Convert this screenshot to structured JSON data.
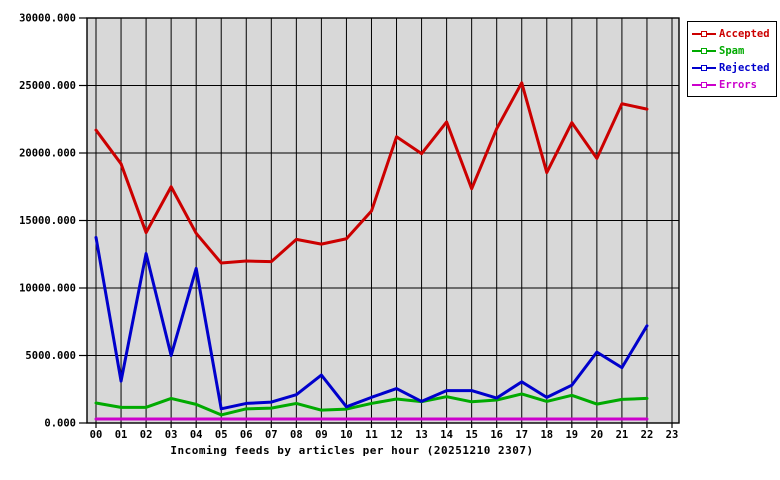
{
  "chart_data": {
    "type": "line",
    "title": "Incoming feeds by articles per hour (20251210 2307)",
    "x_tick_labels": [
      "00",
      "01",
      "02",
      "03",
      "04",
      "05",
      "06",
      "07",
      "08",
      "09",
      "10",
      "11",
      "12",
      "13",
      "14",
      "15",
      "16",
      "17",
      "18",
      "19",
      "20",
      "21",
      "22",
      "23"
    ],
    "y_tick_labels": [
      "0.000",
      "5000.000",
      "10000.000",
      "15000.000",
      "20000.000",
      "25000.000",
      "30000.000"
    ],
    "y_tick_step": 5000,
    "ylim": [
      0,
      30000
    ],
    "grid": true,
    "plot_background": "#d8d8d8",
    "grid_color": "#000000",
    "legend_position": "top-right",
    "series": [
      {
        "name": "Accepted",
        "color": "#cc0000",
        "values": [
          21700,
          19200,
          14100,
          17500,
          14050,
          11850,
          12000,
          11950,
          13600,
          13250,
          13650,
          15700,
          21200,
          19950,
          22300,
          17350,
          21800,
          25200,
          18550,
          22250,
          19600,
          23650,
          23250
        ]
      },
      {
        "name": "Spam",
        "color": "#00aa00",
        "values": [
          1480,
          1160,
          1160,
          1820,
          1380,
          600,
          1050,
          1100,
          1450,
          950,
          1030,
          1450,
          1780,
          1580,
          1950,
          1570,
          1700,
          2150,
          1600,
          2050,
          1400,
          1750,
          1820
        ]
      },
      {
        "name": "Rejected",
        "color": "#0000cc",
        "values": [
          13750,
          3100,
          12550,
          5000,
          11450,
          1050,
          1450,
          1550,
          2100,
          3550,
          1200,
          1900,
          2550,
          1600,
          2400,
          2400,
          1850,
          3050,
          1900,
          2800,
          5250,
          4100,
          7200
        ]
      },
      {
        "name": "Errors",
        "color": "#cc00cc",
        "values": [
          300,
          300,
          300,
          300,
          300,
          300,
          300,
          300,
          300,
          300,
          300,
          300,
          300,
          300,
          300,
          300,
          300,
          300,
          300,
          300,
          300,
          300,
          300
        ]
      }
    ]
  }
}
